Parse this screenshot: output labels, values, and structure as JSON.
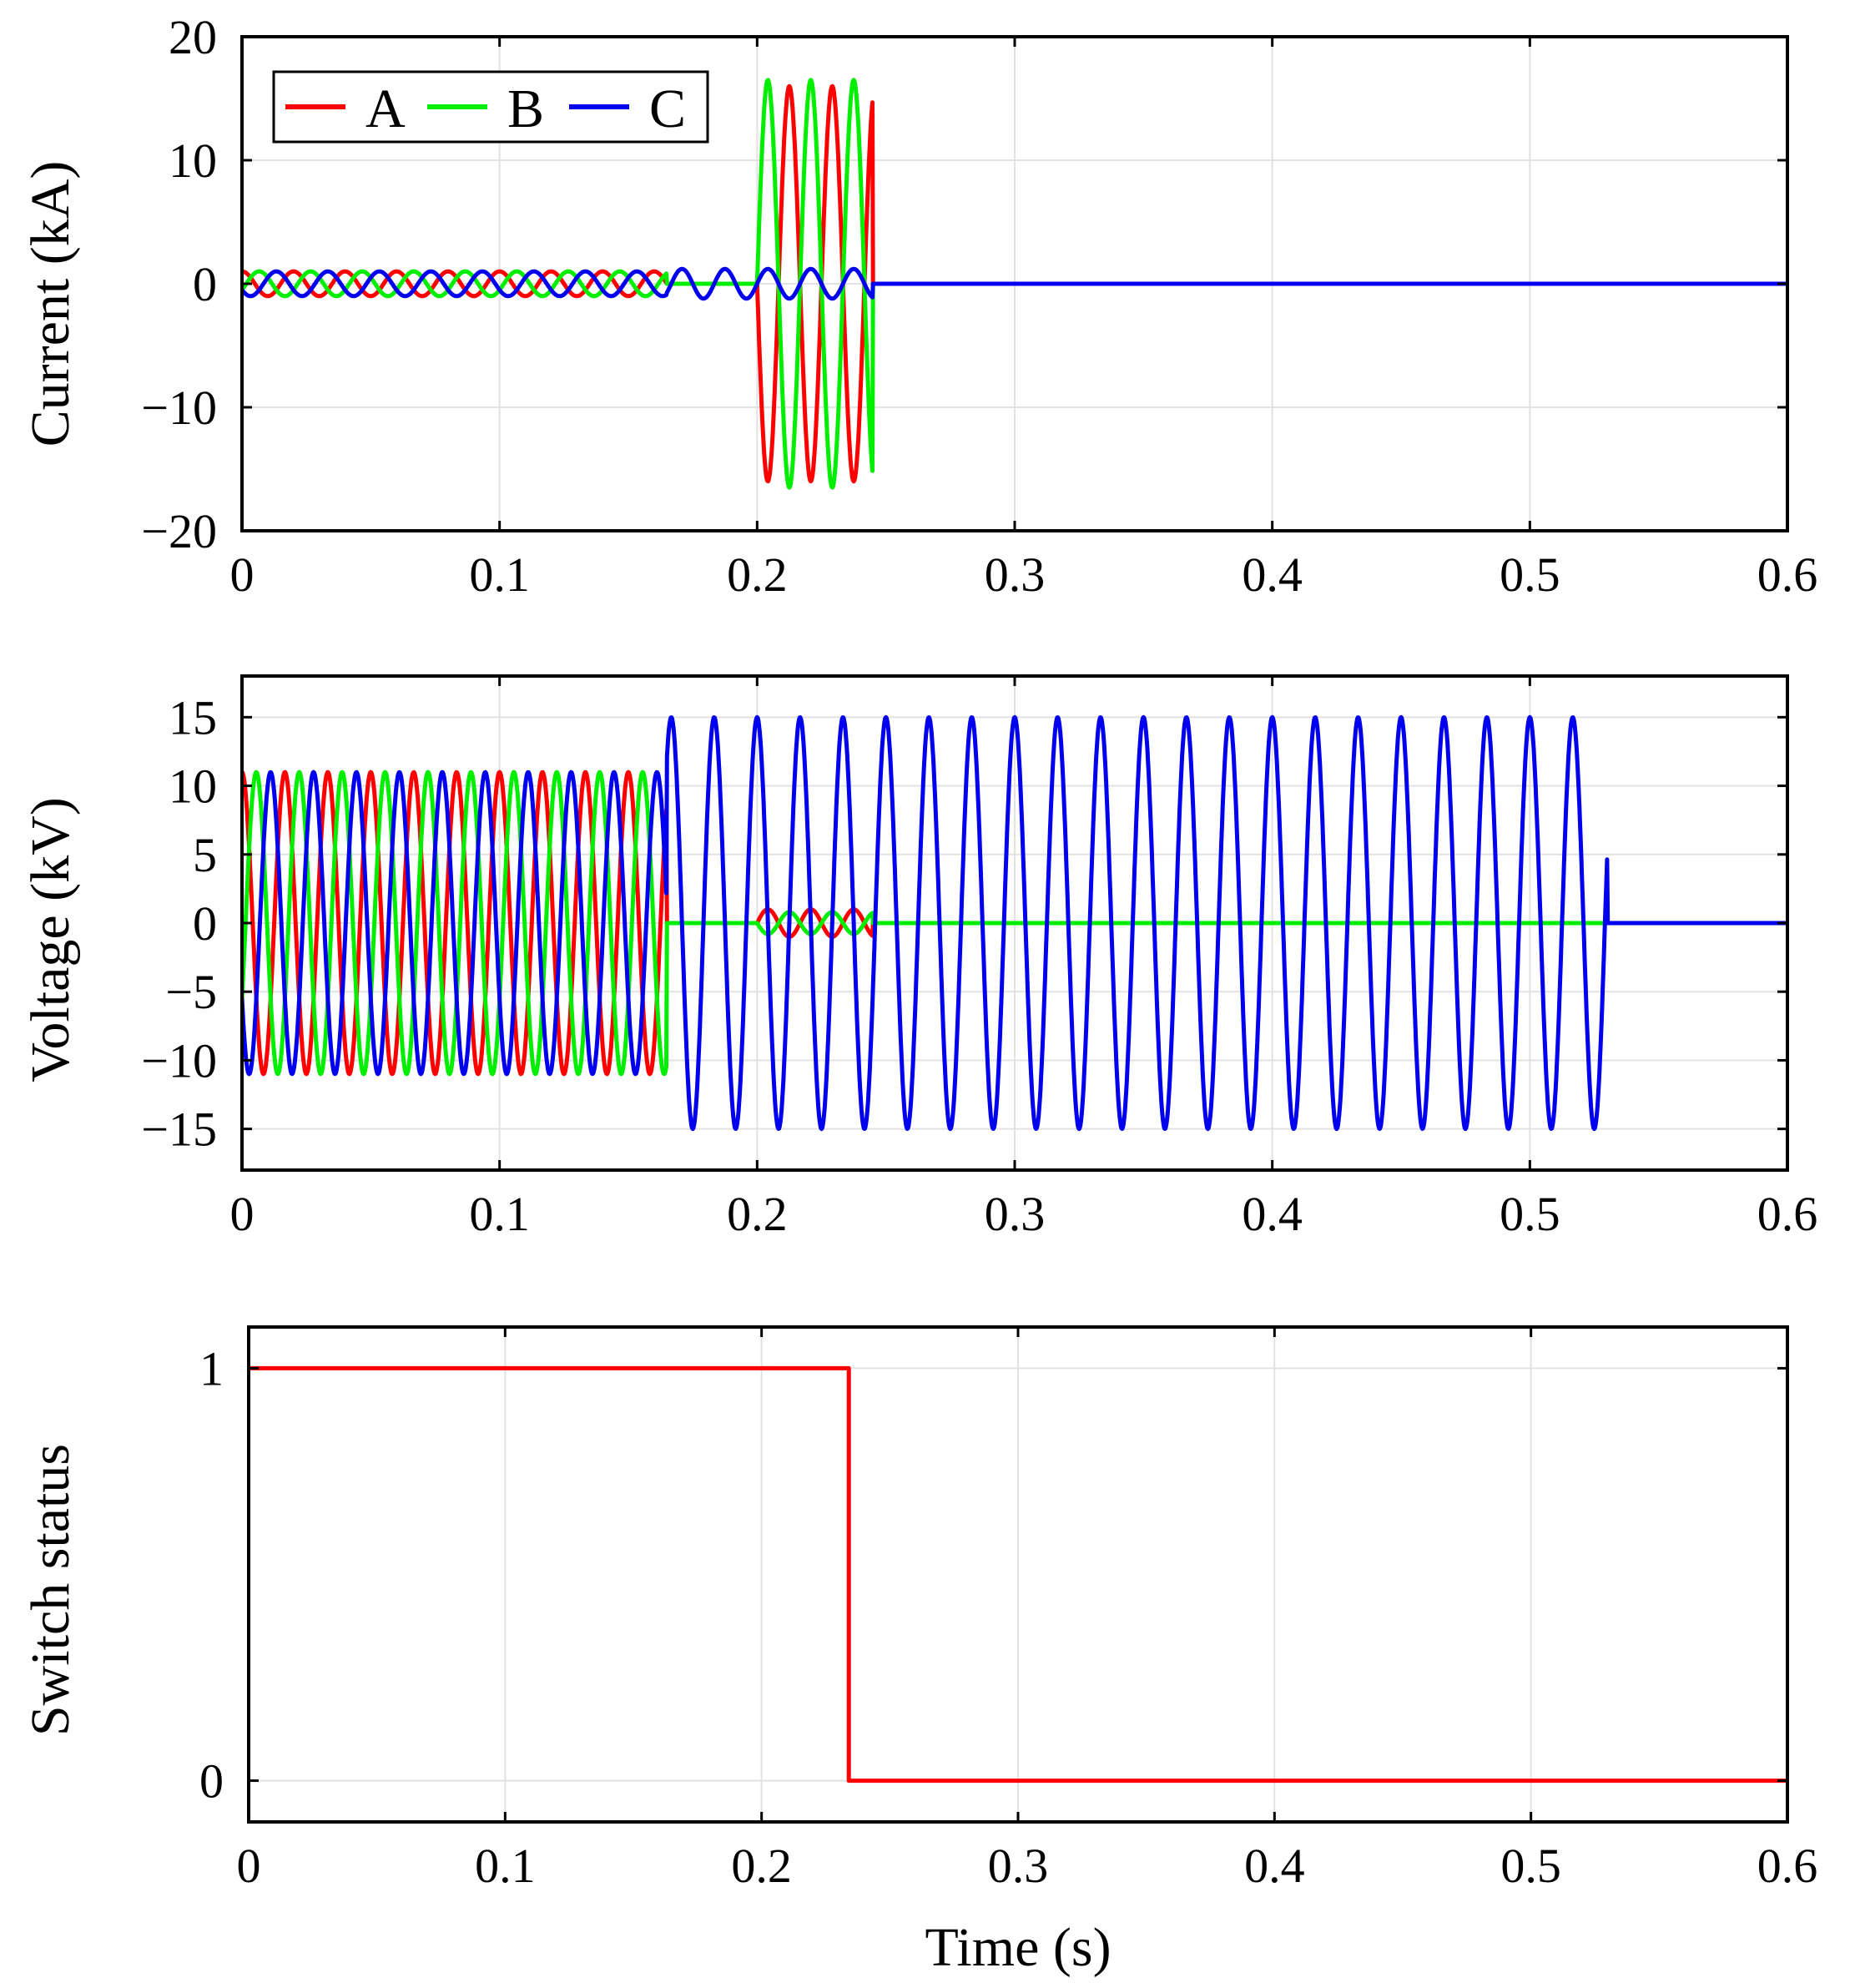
{
  "chart_data": [
    {
      "type": "line",
      "title": "",
      "xlabel": "",
      "ylabel": "Current (kA)",
      "xlim": [
        0,
        0.6
      ],
      "ylim": [
        -20,
        20
      ],
      "xticks": [
        "0",
        "0.1",
        "0.2",
        "0.3",
        "0.4",
        "0.5",
        "0.6"
      ],
      "yticks": [
        "20",
        "10",
        "0",
        "−10",
        "−20"
      ],
      "ytick_values": [
        20,
        10,
        0,
        -10,
        -20
      ],
      "grid": true,
      "legend": {
        "position": "top-left",
        "entries": [
          "A",
          "B",
          "C"
        ]
      },
      "series": [
        {
          "name": "A",
          "color": "#ff0000",
          "segments": [
            {
              "t0": 0,
              "t1": 0.165,
              "amp": 1,
              "freq": 50,
              "phase_deg": 90
            },
            {
              "t0": 0.2,
              "t1": 0.245,
              "amp": 16,
              "freq": 60,
              "phase_deg": 180
            }
          ]
        },
        {
          "name": "B",
          "color": "#00ee00",
          "segments": [
            {
              "t0": 0,
              "t1": 0.165,
              "amp": 1,
              "freq": 50,
              "phase_deg": -30
            },
            {
              "t0": 0.2,
              "t1": 0.245,
              "amp": 16.5,
              "freq": 60,
              "phase_deg": 0
            }
          ]
        },
        {
          "name": "C",
          "color": "#0000ee",
          "segments": [
            {
              "t0": 0,
              "t1": 0.165,
              "amp": 1,
              "freq": 50,
              "phase_deg": 210
            },
            {
              "t0": 0.165,
              "t1": 0.245,
              "amp": 1.2,
              "freq": 60,
              "phase_deg": 0
            }
          ]
        }
      ]
    },
    {
      "type": "line",
      "title": "",
      "xlabel": "",
      "ylabel": "Voltage (kV)",
      "xlim": [
        0,
        0.6
      ],
      "ylim": [
        -18,
        18
      ],
      "xticks": [
        "0",
        "0.1",
        "0.2",
        "0.3",
        "0.4",
        "0.5",
        "0.6"
      ],
      "yticks": [
        "15",
        "10",
        "5",
        "0",
        "−5",
        "−10",
        "−15"
      ],
      "ytick_values": [
        15,
        10,
        5,
        0,
        -5,
        -10,
        -15
      ],
      "grid": true,
      "series": [
        {
          "name": "A",
          "color": "#ff0000",
          "segments": [
            {
              "t0": 0,
              "t1": 0.165,
              "amp": 11,
              "freq": 60,
              "phase_deg": 90
            },
            {
              "t0": 0.2,
              "t1": 0.245,
              "amp": 1,
              "freq": 60,
              "phase_deg": 0
            }
          ]
        },
        {
          "name": "B",
          "color": "#00ee00",
          "segments": [
            {
              "t0": 0,
              "t1": 0.165,
              "amp": 11,
              "freq": 60,
              "phase_deg": -30
            },
            {
              "t0": 0.2,
              "t1": 0.245,
              "amp": 0.8,
              "freq": 60,
              "phase_deg": 180
            }
          ]
        },
        {
          "name": "C",
          "color": "#0000ee",
          "segments": [
            {
              "t0": 0,
              "t1": 0.165,
              "amp": 11,
              "freq": 60,
              "phase_deg": 210
            },
            {
              "t0": 0.165,
              "t1": 0.53,
              "amp": 15,
              "freq": 60,
              "phase_deg": 90
            }
          ]
        }
      ]
    },
    {
      "type": "line",
      "title": "",
      "xlabel": "Time (s)",
      "ylabel": "Switch status",
      "xlim": [
        0,
        0.6
      ],
      "ylim": [
        -0.1,
        1.1
      ],
      "xticks": [
        "0",
        "0.1",
        "0.2",
        "0.3",
        "0.4",
        "0.5",
        "0.6"
      ],
      "yticks": [
        "1",
        "0"
      ],
      "ytick_values": [
        1,
        0
      ],
      "grid": true,
      "series": [
        {
          "name": "Switch",
          "color": "#ff0000",
          "x": [
            0,
            0.234,
            0.234,
            0.6
          ],
          "y": [
            1,
            1,
            0,
            0
          ]
        }
      ]
    }
  ]
}
